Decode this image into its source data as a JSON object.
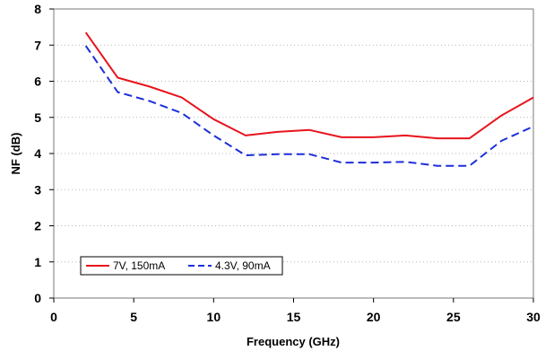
{
  "chart_data": {
    "type": "line",
    "title": "",
    "xlabel": "Frequency (GHz)",
    "ylabel": "NF (dB)",
    "xlim": [
      0,
      30
    ],
    "ylim": [
      0,
      8
    ],
    "xticks": [
      0,
      5,
      10,
      15,
      20,
      25,
      30
    ],
    "yticks": [
      0,
      1,
      2,
      3,
      4,
      5,
      6,
      7,
      8
    ],
    "grid": "horizontal-dotted",
    "legend_position": "bottom-left",
    "series": [
      {
        "name": "7V, 150mA",
        "color": "#e8141c",
        "style": "solid",
        "x": [
          2,
          4,
          6,
          8,
          10,
          12,
          14,
          16,
          18,
          20,
          22,
          24,
          26,
          28,
          30
        ],
        "y": [
          7.35,
          6.1,
          5.85,
          5.55,
          4.95,
          4.5,
          4.6,
          4.65,
          4.45,
          4.45,
          4.5,
          4.42,
          4.42,
          5.05,
          5.55
        ]
      },
      {
        "name": "4.3V, 90mA",
        "color": "#1d2fd8",
        "style": "dashed",
        "x": [
          2,
          4,
          6,
          8,
          10,
          12,
          14,
          16,
          18,
          20,
          22,
          24,
          26,
          28,
          30
        ],
        "y": [
          6.98,
          5.7,
          5.45,
          5.12,
          4.5,
          3.95,
          3.98,
          3.98,
          3.75,
          3.75,
          3.77,
          3.66,
          3.66,
          4.35,
          4.75
        ]
      }
    ]
  }
}
